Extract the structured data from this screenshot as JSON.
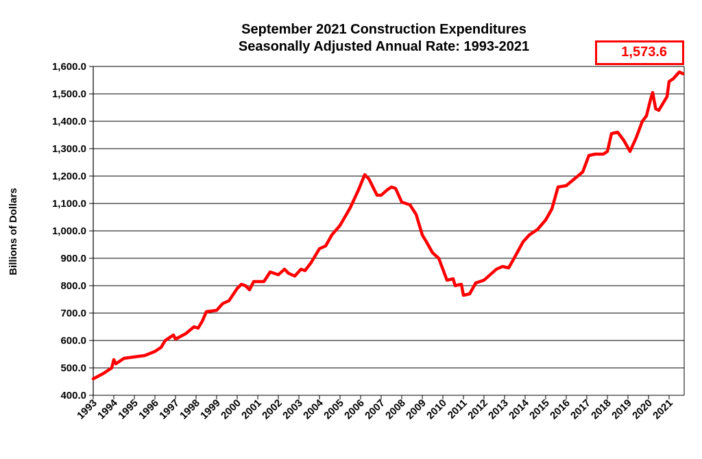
{
  "chart_data": {
    "type": "line",
    "title": "September 2021 Construction Expenditures",
    "subtitle": "Seasonally Adjusted Annual Rate: 1993-2021",
    "xlabel": "",
    "ylabel": "Billions of Dollars",
    "ylim": [
      400,
      1600
    ],
    "xlim": [
      1993,
      2021.75
    ],
    "grid": "horizontal",
    "yticks": [
      "400.0",
      "500.0",
      "600.0",
      "700.0",
      "800.0",
      "900.0",
      "1,000.0",
      "1,100.0",
      "1,200.0",
      "1,300.0",
      "1,400.0",
      "1,500.0",
      "1,600.0"
    ],
    "xticks": [
      "1993",
      "1994",
      "1995",
      "1996",
      "1997",
      "1998",
      "1999",
      "2000",
      "2001",
      "2002",
      "2003",
      "2004",
      "2005",
      "2006",
      "2007",
      "2008",
      "2009",
      "2010",
      "2011",
      "2012",
      "2013",
      "2014",
      "2015",
      "2016",
      "2017",
      "2018",
      "2019",
      "2020",
      "2021"
    ],
    "line_color": "#ff0000",
    "latest_value_label": "1,573.6",
    "series": [
      {
        "x": [
          1993.0,
          1993.5,
          1993.9,
          1994.0,
          1994.1,
          1994.5,
          1995.0,
          1995.5,
          1996.0,
          1996.3,
          1996.5,
          1996.9,
          1997.0,
          1997.5,
          1997.9,
          1998.1,
          1998.3,
          1998.5,
          1999.0,
          1999.3,
          1999.6,
          2000.0,
          2000.2,
          2000.4,
          2000.6,
          2000.8,
          2001.3,
          2001.6,
          2002.0,
          2002.3,
          2002.5,
          2002.8,
          2003.1,
          2003.3,
          2003.6,
          2004.0,
          2004.3,
          2004.6,
          2005.0,
          2005.5,
          2005.9,
          2006.2,
          2006.4,
          2006.8,
          2007.0,
          2007.3,
          2007.5,
          2007.7,
          2008.0,
          2008.4,
          2008.7,
          2009.0,
          2009.2,
          2009.5,
          2009.8,
          2010.0,
          2010.2,
          2010.5,
          2010.6,
          2010.9,
          2011.0,
          2011.3,
          2011.6,
          2012.0,
          2012.3,
          2012.6,
          2012.9,
          2013.2,
          2013.5,
          2013.9,
          2014.2,
          2014.6,
          2015.0,
          2015.3,
          2015.6,
          2016.0,
          2016.4,
          2016.8,
          2017.1,
          2017.4,
          2017.8,
          2018.0,
          2018.2,
          2018.5,
          2018.8,
          2019.1,
          2019.4,
          2019.7,
          2019.9,
          2020.1,
          2020.2,
          2020.35,
          2020.5,
          2020.9,
          2021.0,
          2021.2,
          2021.5,
          2021.67
        ],
        "y": [
          460,
          480,
          500,
          530,
          515,
          535,
          540,
          545,
          560,
          575,
          600,
          620,
          605,
          625,
          650,
          645,
          670,
          705,
          710,
          735,
          745,
          790,
          805,
          800,
          785,
          815,
          815,
          850,
          840,
          860,
          845,
          835,
          860,
          855,
          885,
          935,
          945,
          985,
          1020,
          1085,
          1150,
          1205,
          1190,
          1130,
          1130,
          1150,
          1160,
          1155,
          1105,
          1095,
          1060,
          985,
          960,
          920,
          900,
          860,
          820,
          825,
          800,
          805,
          765,
          770,
          810,
          820,
          840,
          860,
          870,
          865,
          905,
          960,
          985,
          1005,
          1040,
          1080,
          1160,
          1165,
          1190,
          1215,
          1275,
          1280,
          1280,
          1290,
          1355,
          1360,
          1330,
          1290,
          1340,
          1400,
          1420,
          1480,
          1505,
          1445,
          1440,
          1490,
          1545,
          1555,
          1580,
          1573.6
        ]
      }
    ]
  }
}
